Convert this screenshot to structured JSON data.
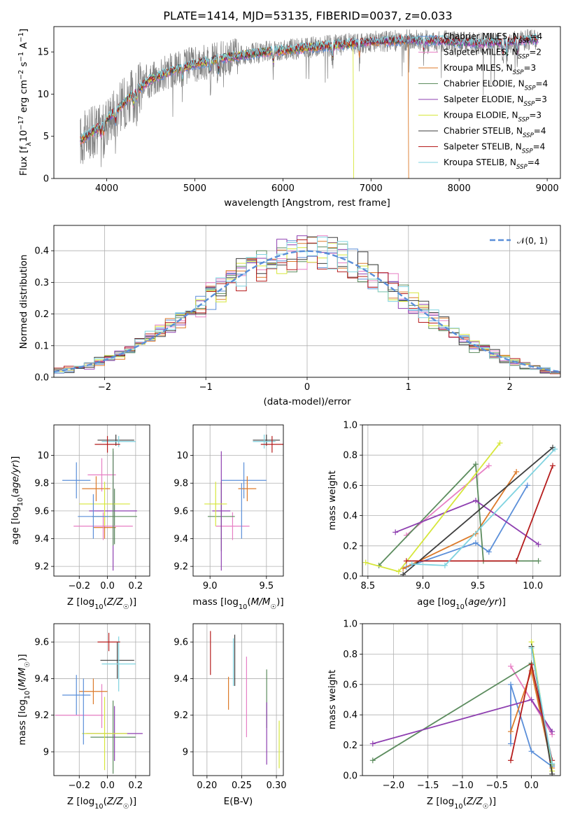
{
  "figure_title": "PLATE=1414, MJD=53135, FIBERID=0037, z=0.033",
  "colors": {
    "chabrier_miles": "#5b8fd9",
    "salpeter_miles": "#e77fc4",
    "kroupa_miles": "#dc7a2a",
    "chabrier_elodie": "#5c8c5e",
    "salpeter_elodie": "#8e3fb0",
    "kroupa_elodie": "#d6e63a",
    "chabrier_stelib": "#3e3e3e",
    "salpeter_stelib": "#b51c1c",
    "kroupa_stelib": "#7fd3e0",
    "data_spectrum": "#808080",
    "normal_curve": "#5b8fd9"
  },
  "chart_data": [
    {
      "type": "line",
      "panel": "spectrum",
      "xlabel": "wavelength [Angstrom, rest frame]",
      "ylabel": "Flux [f_λ 10^-17 erg cm^-2 s^-1 A^-1]",
      "xlim": [
        3400,
        9150
      ],
      "ylim": [
        0,
        18
      ],
      "xticks": [
        4000,
        5000,
        6000,
        7000,
        8000,
        9000
      ],
      "yticks": [
        0,
        5,
        10,
        15
      ],
      "continuum": {
        "x": [
          3700,
          3900,
          4100,
          4300,
          4500,
          4800,
          5100,
          5400,
          5800,
          6200,
          6600,
          7000,
          7400,
          7800,
          8200,
          8600,
          8900
        ],
        "y": [
          4.5,
          6.0,
          8.0,
          10.0,
          11.8,
          13.0,
          13.8,
          14.4,
          15.0,
          15.4,
          15.8,
          16.2,
          16.4,
          16.3,
          16.0,
          16.2,
          16.5
        ]
      },
      "drops": [
        {
          "series": "Kroupa ELODIE",
          "x": 6800
        },
        {
          "series": "Kroupa MILES",
          "x": 7420
        }
      ],
      "legend": [
        {
          "label": "Chabrier MILES, N",
          "sub": "SSP",
          "tail": "=4"
        },
        {
          "label": "Salpeter MILES, N",
          "sub": "SSP",
          "tail": "=2"
        },
        {
          "label": "Kroupa MILES, N",
          "sub": "SSP",
          "tail": "=3"
        },
        {
          "label": "Chabrier ELODIE, N",
          "sub": "SSP",
          "tail": "=4"
        },
        {
          "label": "Salpeter ELODIE, N",
          "sub": "SSP",
          "tail": "=3"
        },
        {
          "label": "Kroupa ELODIE, N",
          "sub": "SSP",
          "tail": "=3"
        },
        {
          "label": "Chabrier STELIB, N",
          "sub": "SSP",
          "tail": "=4"
        },
        {
          "label": "Salpeter STELIB, N",
          "sub": "SSP",
          "tail": "=4"
        },
        {
          "label": "Kroupa STELIB, N",
          "sub": "SSP",
          "tail": "=4"
        }
      ]
    },
    {
      "type": "line",
      "panel": "residual_histogram",
      "xlabel": "(data-model)/error",
      "ylabel": "Normed distribution",
      "xlim": [
        -2.5,
        2.5
      ],
      "ylim": [
        0,
        0.48
      ],
      "xticks": [
        -2,
        -1,
        0,
        1,
        2
      ],
      "xtick_labels": [
        "−2",
        "−1",
        "0",
        "1",
        "2"
      ],
      "yticks": [
        0.0,
        0.1,
        0.2,
        0.3,
        0.4
      ],
      "ytick_labels": [
        "0.0",
        "0.1",
        "0.2",
        "0.3",
        "0.4"
      ],
      "grid": true,
      "legend": "𝒩(0, 1)",
      "legend_position": "top-right",
      "bin_width": 0.1
    },
    {
      "type": "scatter",
      "panel": "age_vs_Z",
      "xlabel": "Z [log10(Z/Z☉)]",
      "ylabel": "age  [log10(age/yr)]",
      "xlim": [
        -0.38,
        0.3
      ],
      "ylim": [
        9.13,
        10.22
      ],
      "xticks": [
        -0.2,
        0.0,
        0.2
      ],
      "xtick_labels": [
        "−0.2",
        "0.0",
        "0.2"
      ],
      "yticks": [
        9.2,
        9.4,
        9.6,
        9.8,
        10.0
      ],
      "points": [
        {
          "series": "Chabrier MILES",
          "x": -0.22,
          "xerr": 0.1,
          "y": 9.82,
          "yerr": 0.13
        },
        {
          "series": "Salpeter MILES",
          "x": -0.04,
          "xerr": 0.1,
          "y": 9.86,
          "yerr": 0.12
        },
        {
          "series": "Kroupa MILES",
          "x": -0.08,
          "xerr": 0.1,
          "y": 9.76,
          "yerr": 0.09
        },
        {
          "series": "Kroupa MILES",
          "x": -0.02,
          "xerr": 0.08,
          "y": 9.48,
          "yerr": 0.08
        },
        {
          "series": "Chabrier ELODIE",
          "x": 0.05,
          "xerr": 0.16,
          "y": 9.56,
          "yerr": 0.2
        },
        {
          "series": "Salpeter ELODIE",
          "x": 0.04,
          "xerr": 0.17,
          "y": 9.6,
          "yerr": 0.43
        },
        {
          "series": "Kroupa ELODIE",
          "x": -0.02,
          "xerr": 0.18,
          "y": 9.65,
          "yerr": 0.16
        },
        {
          "series": "Salpeter MILES",
          "x": -0.03,
          "xerr": 0.21,
          "y": 9.49,
          "yerr": 0.1
        },
        {
          "series": "Chabrier MILES",
          "x": -0.1,
          "xerr": 0.11,
          "y": 9.56,
          "yerr": 0.16
        },
        {
          "series": "Chabrier STELIB",
          "x": 0.06,
          "xerr": 0.13,
          "y": 10.11,
          "yerr": 0.04
        },
        {
          "series": "Kroupa STELIB",
          "x": 0.08,
          "xerr": 0.12,
          "y": 10.1,
          "yerr": 0.04
        },
        {
          "series": "Salpeter STELIB",
          "x": 0.0,
          "xerr": 0.09,
          "y": 10.08,
          "yerr": 0.06
        },
        {
          "series": "Chabrier ELODIE",
          "x": 0.04,
          "xerr": 0.0,
          "y": 9.7,
          "yerr": 0.35
        }
      ]
    },
    {
      "type": "scatter",
      "panel": "age_vs_mass",
      "xlabel": "mass [log10(M/M☉)]",
      "ylabel": "",
      "xlim": [
        8.85,
        9.65
      ],
      "ylim": [
        9.13,
        10.22
      ],
      "xticks": [
        9.0,
        9.5
      ],
      "xtick_labels": [
        "9.0",
        "9.5"
      ],
      "yticks": [
        9.2,
        9.4,
        9.6,
        9.8,
        10.0
      ],
      "points": [
        {
          "series": "Chabrier MILES",
          "x": 9.3,
          "xerr": 0.2,
          "y": 9.82,
          "yerr": 0.13
        },
        {
          "series": "Salpeter MILES",
          "x": 9.2,
          "xerr": 0.15,
          "y": 9.49,
          "yerr": 0.1
        },
        {
          "series": "Kroupa MILES",
          "x": 9.33,
          "xerr": 0.08,
          "y": 9.76,
          "yerr": 0.09
        },
        {
          "series": "Chabrier ELODIE",
          "x": 9.1,
          "xerr": 0.12,
          "y": 9.56,
          "yerr": 0.25
        },
        {
          "series": "Salpeter ELODIE",
          "x": 9.1,
          "xerr": 0.08,
          "y": 9.6,
          "yerr": 0.43
        },
        {
          "series": "Kroupa ELODIE",
          "x": 9.05,
          "xerr": 0.1,
          "y": 9.65,
          "yerr": 0.16
        },
        {
          "series": "Chabrier STELIB",
          "x": 9.5,
          "xerr": 0.12,
          "y": 10.11,
          "yerr": 0.04
        },
        {
          "series": "Kroupa STELIB",
          "x": 9.48,
          "xerr": 0.1,
          "y": 10.1,
          "yerr": 0.05
        },
        {
          "series": "Salpeter STELIB",
          "x": 9.55,
          "xerr": 0.1,
          "y": 10.08,
          "yerr": 0.06
        },
        {
          "series": "Chabrier MILES",
          "x": 9.28,
          "xerr": 0.0,
          "y": 9.6,
          "yerr": 0.2
        }
      ]
    },
    {
      "type": "line",
      "panel": "massweight_vs_age",
      "xlabel": "age  [log10(age/yr)]",
      "ylabel": "mass weight",
      "xlim": [
        8.45,
        10.25
      ],
      "ylim": [
        0,
        1.0
      ],
      "xticks": [
        8.5,
        9.0,
        9.5,
        10.0
      ],
      "xtick_labels": [
        "8.5",
        "9.0",
        "9.5",
        "10.0"
      ],
      "yticks": [
        0.0,
        0.2,
        0.4,
        0.6,
        0.8,
        1.0
      ],
      "ytick_labels": [
        "0.0",
        "0.2",
        "0.4",
        "0.6",
        "0.8",
        "1.0"
      ],
      "series": [
        {
          "name": "Chabrier MILES",
          "x": [
            8.85,
            9.48,
            9.6,
            9.95
          ],
          "y": [
            0.06,
            0.22,
            0.16,
            0.6
          ]
        },
        {
          "name": "Salpeter MILES",
          "x": [
            8.85,
            9.6
          ],
          "y": [
            0.27,
            0.73
          ]
        },
        {
          "name": "Kroupa MILES",
          "x": [
            8.82,
            9.48,
            9.85
          ],
          "y": [
            0.05,
            0.28,
            0.69
          ]
        },
        {
          "name": "Chabrier ELODIE",
          "x": [
            8.6,
            9.48,
            9.55,
            10.05
          ],
          "y": [
            0.07,
            0.74,
            0.1,
            0.1
          ]
        },
        {
          "name": "Salpeter ELODIE",
          "x": [
            8.75,
            9.48,
            10.05
          ],
          "y": [
            0.29,
            0.5,
            0.21
          ]
        },
        {
          "name": "Kroupa ELODIE",
          "x": [
            8.48,
            8.78,
            9.7
          ],
          "y": [
            0.09,
            0.03,
            0.88
          ]
        },
        {
          "name": "Chabrier STELIB",
          "x": [
            8.82,
            10.18
          ],
          "y": [
            0.01,
            0.85
          ]
        },
        {
          "name": "Salpeter STELIB",
          "x": [
            8.85,
            9.85,
            10.18
          ],
          "y": [
            0.1,
            0.1,
            0.73
          ]
        },
        {
          "name": "Kroupa STELIB",
          "x": [
            8.9,
            9.2,
            10.2
          ],
          "y": [
            0.08,
            0.07,
            0.84
          ]
        }
      ]
    },
    {
      "type": "scatter",
      "panel": "mass_vs_Z",
      "xlabel": "Z [log10(Z/Z☉)]",
      "ylabel": "mass [log10(M/M☉)]",
      "xlim": [
        -0.38,
        0.3
      ],
      "ylim": [
        8.87,
        9.7
      ],
      "xticks": [
        -0.2,
        0.0,
        0.2
      ],
      "xtick_labels": [
        "−0.2",
        "0.0",
        "0.2"
      ],
      "yticks": [
        9.0,
        9.2,
        9.4,
        9.6
      ],
      "points": [
        {
          "series": "Chabrier MILES",
          "x": -0.22,
          "xerr": 0.1,
          "y": 9.31,
          "yerr": 0.11
        },
        {
          "series": "Salpeter MILES",
          "x": -0.2,
          "xerr": 0.17,
          "y": 9.2,
          "yerr": 0.0
        },
        {
          "series": "Salpeter MILES",
          "x": -0.04,
          "xerr": 0.0,
          "y": 9.25,
          "yerr": 0.12
        },
        {
          "series": "Kroupa MILES",
          "x": -0.1,
          "xerr": 0.1,
          "y": 9.33,
          "yerr": 0.07
        },
        {
          "series": "Chabrier ELODIE",
          "x": 0.04,
          "xerr": 0.16,
          "y": 9.08,
          "yerr": 0.2
        },
        {
          "series": "Salpeter ELODIE",
          "x": 0.05,
          "xerr": 0.2,
          "y": 9.1,
          "yerr": 0.15
        },
        {
          "series": "Kroupa ELODIE",
          "x": -0.02,
          "xerr": 0.16,
          "y": 9.1,
          "yerr": 0.2
        },
        {
          "series": "Chabrier STELIB",
          "x": 0.07,
          "xerr": 0.12,
          "y": 9.5,
          "yerr": 0.1
        },
        {
          "series": "Kroupa STELIB",
          "x": 0.08,
          "xerr": 0.12,
          "y": 9.48,
          "yerr": 0.15
        },
        {
          "series": "Salpeter STELIB",
          "x": 0.01,
          "xerr": 0.08,
          "y": 9.6,
          "yerr": 0.05
        },
        {
          "series": "Chabrier MILES",
          "x": -0.17,
          "xerr": 0.0,
          "y": 9.22,
          "yerr": 0.18
        }
      ]
    },
    {
      "type": "scatter",
      "panel": "mass_vs_ebv",
      "xlabel": "E(B-V)",
      "ylabel": "",
      "xlim": [
        0.18,
        0.31
      ],
      "ylim": [
        8.87,
        9.7
      ],
      "xticks": [
        0.2,
        0.25,
        0.3
      ],
      "xtick_labels": [
        "0.20",
        "0.25",
        "0.30"
      ],
      "yticks": [
        9.0,
        9.2,
        9.4,
        9.6
      ],
      "points": [
        {
          "series": "Salpeter STELIB",
          "x": 0.205,
          "y": 9.54,
          "yerr": 0.12
        },
        {
          "series": "Kroupa MILES",
          "x": 0.231,
          "y": 9.32,
          "yerr": 0.09
        },
        {
          "series": "Chabrier STELIB",
          "x": 0.24,
          "y": 9.5,
          "yerr": 0.14
        },
        {
          "series": "Kroupa STELIB",
          "x": 0.238,
          "y": 9.49,
          "yerr": 0.13
        },
        {
          "series": "Salpeter MILES",
          "x": 0.257,
          "y": 9.3,
          "yerr": 0.22
        },
        {
          "series": "Chabrier ELODIE",
          "x": 0.286,
          "y": 9.29,
          "yerr": 0.16
        },
        {
          "series": "Salpeter ELODIE",
          "x": 0.286,
          "y": 9.1,
          "yerr": 0.17
        },
        {
          "series": "Kroupa ELODIE",
          "x": 0.304,
          "y": 9.04,
          "yerr": 0.13
        }
      ]
    },
    {
      "type": "line",
      "panel": "massweight_vs_Z",
      "xlabel": "Z [log10(Z/Z☉)]",
      "ylabel": "mass weight",
      "xlim": [
        -2.45,
        0.42
      ],
      "ylim": [
        0,
        1.0
      ],
      "xticks": [
        -2.0,
        -1.5,
        -1.0,
        -0.5,
        0.0
      ],
      "xtick_labels": [
        "−2.0",
        "−1.5",
        "−1.0",
        "−0.5",
        "0.0"
      ],
      "yticks": [
        0.0,
        0.2,
        0.4,
        0.6,
        0.8,
        1.0
      ],
      "ytick_labels": [
        "0.0",
        "0.2",
        "0.4",
        "0.6",
        "0.8",
        "1.0"
      ],
      "series": [
        {
          "name": "Chabrier MILES",
          "x": [
            -0.3,
            -0.3,
            0.0,
            0.3
          ],
          "y": [
            0.21,
            0.6,
            0.16,
            0.06
          ]
        },
        {
          "name": "Salpeter MILES",
          "x": [
            -0.3,
            0.3
          ],
          "y": [
            0.72,
            0.27
          ]
        },
        {
          "name": "Kroupa MILES",
          "x": [
            -0.3,
            0.0,
            0.3
          ],
          "y": [
            0.29,
            0.69,
            0.05
          ]
        },
        {
          "name": "Chabrier ELODIE",
          "x": [
            -2.3,
            0.0,
            0.3
          ],
          "y": [
            0.1,
            0.74,
            0.07
          ]
        },
        {
          "name": "Salpeter ELODIE",
          "x": [
            -2.3,
            0.0,
            0.3
          ],
          "y": [
            0.21,
            0.5,
            0.29
          ]
        },
        {
          "name": "Kroupa ELODIE",
          "x": [
            0.0,
            0.3
          ],
          "y": [
            0.88,
            0.03
          ]
        },
        {
          "name": "Chabrier STELIB",
          "x": [
            0.0,
            0.3
          ],
          "y": [
            0.85,
            0.01
          ]
        },
        {
          "name": "Salpeter STELIB",
          "x": [
            -0.3,
            0.0,
            0.3
          ],
          "y": [
            0.1,
            0.73,
            0.1
          ]
        },
        {
          "name": "Kroupa STELIB",
          "x": [
            0.0,
            0.3
          ],
          "y": [
            0.84,
            0.08
          ]
        }
      ]
    }
  ]
}
